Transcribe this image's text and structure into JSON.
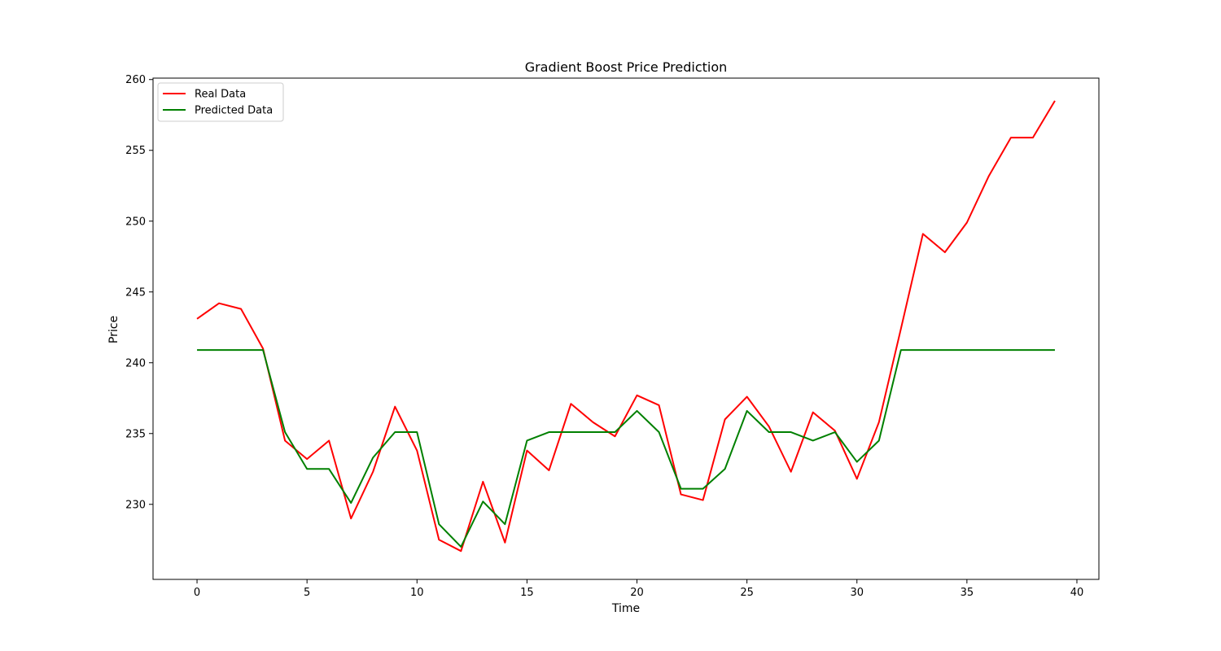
{
  "chart_data": {
    "type": "line",
    "title": "Gradient Boost Price Prediction",
    "xlabel": "Time",
    "ylabel": "Price",
    "xlim": [
      -2,
      41
    ],
    "ylim": [
      224.7,
      260.1
    ],
    "xticks": [
      0,
      5,
      10,
      15,
      20,
      25,
      30,
      35,
      40
    ],
    "yticks": [
      230,
      235,
      240,
      245,
      250,
      255,
      260
    ],
    "grid": false,
    "legend_position": "top-left",
    "x": [
      0,
      1,
      2,
      3,
      4,
      5,
      6,
      7,
      8,
      9,
      10,
      11,
      12,
      13,
      14,
      15,
      16,
      17,
      18,
      19,
      20,
      21,
      22,
      23,
      24,
      25,
      26,
      27,
      28,
      29,
      30,
      31,
      32,
      33,
      34,
      35,
      36,
      37,
      38,
      39
    ],
    "series": [
      {
        "name": "Real Data",
        "color": "#ff0000",
        "values": [
          243.1,
          244.2,
          243.8,
          241.0,
          234.5,
          233.2,
          234.5,
          229.0,
          232.3,
          236.9,
          233.8,
          227.5,
          226.7,
          231.6,
          227.3,
          233.8,
          232.4,
          237.1,
          235.8,
          234.8,
          237.7,
          237.0,
          230.7,
          230.3,
          236.0,
          237.6,
          235.5,
          232.3,
          236.5,
          235.2,
          231.8,
          235.8,
          242.4,
          249.1,
          247.8,
          249.9,
          253.2,
          255.9,
          255.9,
          258.5
        ]
      },
      {
        "name": "Predicted Data",
        "color": "#008000",
        "values": [
          240.9,
          240.9,
          240.9,
          240.9,
          235.1,
          232.5,
          232.5,
          230.1,
          233.3,
          235.1,
          235.1,
          228.6,
          227.0,
          230.2,
          228.6,
          234.5,
          235.1,
          235.1,
          235.1,
          235.1,
          236.6,
          235.1,
          231.1,
          231.1,
          232.5,
          236.6,
          235.1,
          235.1,
          234.5,
          235.1,
          233.0,
          234.5,
          240.9,
          240.9,
          240.9,
          240.9,
          240.9,
          240.9,
          240.9,
          240.9
        ]
      }
    ]
  }
}
